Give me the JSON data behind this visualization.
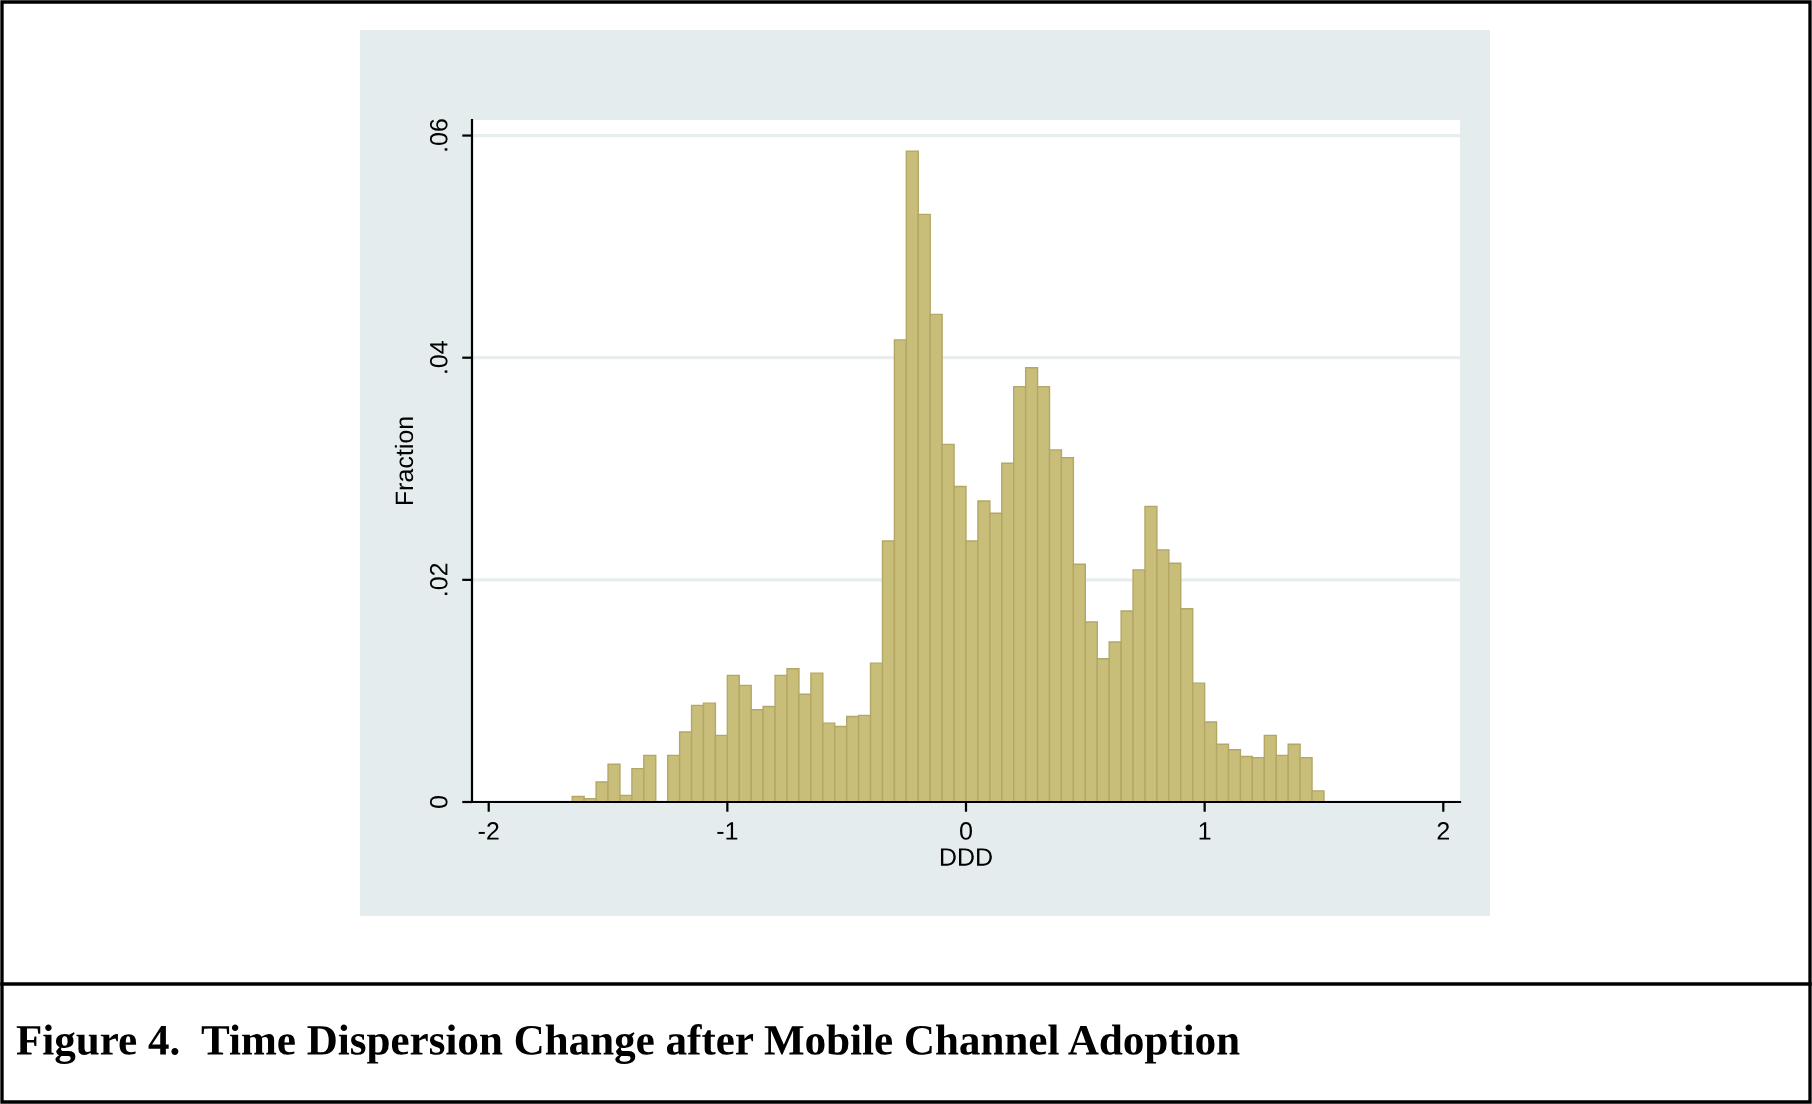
{
  "chart_data": {
    "type": "histogram",
    "xlabel": "DDD",
    "ylabel": "Fraction",
    "annotations": [
      "Figure 4.  Time Dispersion Change after Mobile Channel Adoption"
    ],
    "bins": [
      -1.65,
      -1.6,
      -1.55,
      -1.5,
      -1.45,
      -1.4,
      -1.35,
      -1.3,
      -1.25,
      -1.2,
      -1.15,
      -1.1,
      -1.05,
      -1.0,
      -0.95,
      -0.9,
      -0.85,
      -0.8,
      -0.75,
      -0.7,
      -0.65,
      -0.6,
      -0.55,
      -0.5,
      -0.45,
      -0.4,
      -0.35,
      -0.3,
      -0.25,
      -0.2,
      -0.15,
      -0.1,
      -0.05,
      0.0,
      0.05,
      0.1,
      0.15,
      0.2,
      0.25,
      0.3,
      0.35,
      0.4,
      0.45,
      0.5,
      0.55,
      0.6,
      0.65,
      0.7,
      0.75,
      0.8,
      0.85,
      0.9,
      0.95,
      1.0,
      1.05,
      1.1,
      1.15,
      1.2,
      1.25,
      1.3,
      1.35,
      1.4,
      1.45,
      1.5
    ],
    "values": [
      0.0005,
      0.0003,
      0.0018,
      0.0034,
      0.0006,
      0.003,
      0.0042,
      0,
      0.0042,
      0.0063,
      0.0087,
      0.0089,
      0.006,
      0.0114,
      0.0105,
      0.0083,
      0.0086,
      0.0114,
      0.012,
      0.0097,
      0.0116,
      0.0071,
      0.0068,
      0.0077,
      0.0078,
      0.0125,
      0.0235,
      0.0416,
      0.0586,
      0.0529,
      0.0439,
      0.0322,
      0.0284,
      0.0235,
      0.0271,
      0.026,
      0.0305,
      0.0374,
      0.0391,
      0.0374,
      0.0317,
      0.031,
      0.0214,
      0.0162,
      0.0129,
      0.0144,
      0.0172,
      0.0209,
      0.0266,
      0.0227,
      0.0215,
      0.0174,
      0.0107,
      0.0072,
      0.0052,
      0.0047,
      0.0041,
      0.004,
      0.006,
      0.0042,
      0.0052,
      0.004,
      0.001
    ],
    "color": "#c9bd7a",
    "xlim": [
      -2.07,
      2.07
    ],
    "xticks": [
      -2,
      -1,
      0,
      1,
      2
    ],
    "ylim": [
      0,
      0.0614
    ],
    "yticks": [
      {
        "value": 0,
        "label": "0"
      },
      {
        "value": 0.02,
        "label": ".02"
      },
      {
        "value": 0.04,
        "label": ".04"
      },
      {
        "value": 0.06,
        "label": ".06"
      }
    ],
    "grid": "y",
    "legend": false
  }
}
